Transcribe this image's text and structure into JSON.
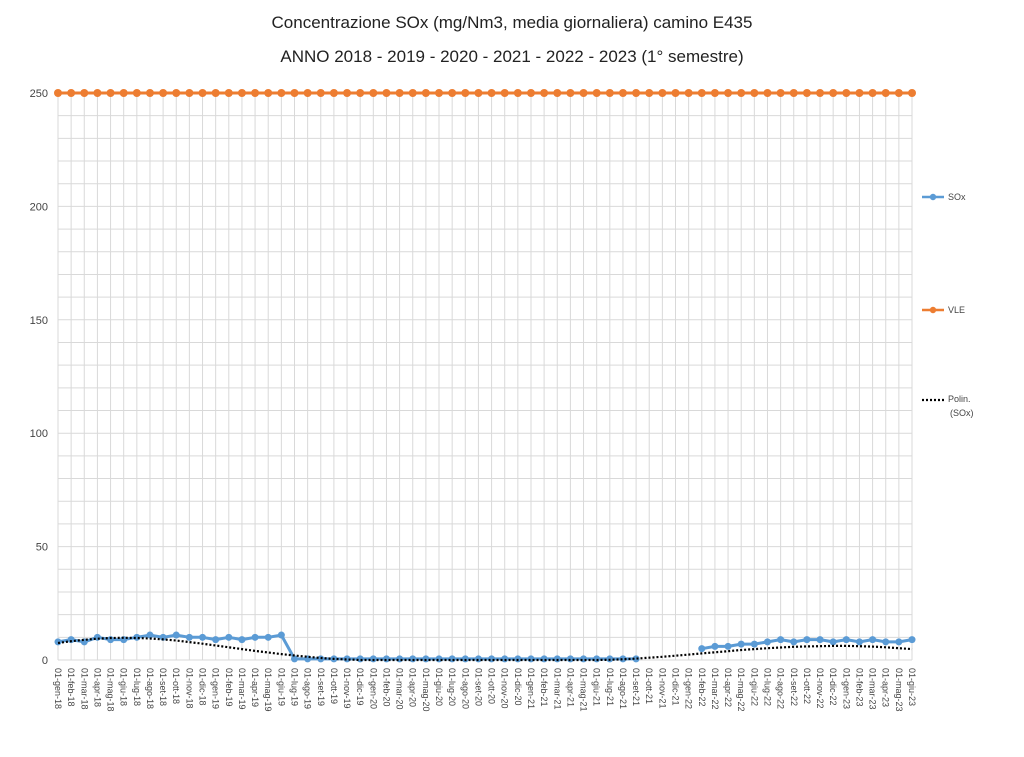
{
  "chart_data": {
    "type": "line",
    "title": "Concentrazione SOx (mg/Nm3, media giornaliera) camino E435",
    "subtitle": "ANNO 2018 - 2019 - 2020 - 2021 - 2022 - 2023 (1° semestre)",
    "ylim": [
      0,
      250
    ],
    "y_ticks": [
      0,
      50,
      100,
      150,
      200,
      250
    ],
    "grid": true,
    "legend_position": "right",
    "categories": [
      "01-gen-18",
      "01-feb-18",
      "01-mar-18",
      "01-apr-18",
      "01-mag-18",
      "01-giu-18",
      "01-lug-18",
      "01-ago-18",
      "01-set-18",
      "01-ott-18",
      "01-nov-18",
      "01-dic-18",
      "01-gen-19",
      "01-feb-19",
      "01-mar-19",
      "01-apr-19",
      "01-mag-19",
      "01-giu-19",
      "01-lug-19",
      "01-ago-19",
      "01-set-19",
      "01-ott-19",
      "01-nov-19",
      "01-dic-19",
      "01-gen-20",
      "01-feb-20",
      "01-mar-20",
      "01-apr-20",
      "01-mag-20",
      "01-giu-20",
      "01-lug-20",
      "01-ago-20",
      "01-set-20",
      "01-ott-20",
      "01-nov-20",
      "01-dic-20",
      "01-gen-21",
      "01-feb-21",
      "01-mar-21",
      "01-apr-21",
      "01-mag-21",
      "01-giu-21",
      "01-lug-21",
      "01-ago-21",
      "01-set-21",
      "01-ott-21",
      "01-nov-21",
      "01-dic-21",
      "01-gen-22",
      "01-feb-22",
      "01-mar-22",
      "01-apr-22",
      "01-mag-22",
      "01-giu-22",
      "01-lug-22",
      "01-ago-22",
      "01-set-22",
      "01-ott-22",
      "01-nov-22",
      "01-dic-22",
      "01-gen-23",
      "01-feb-23",
      "01-mar-23",
      "01-apr-23",
      "01-mag-23",
      "01-giu-23"
    ],
    "series": [
      {
        "name": "SOx",
        "color": "#5b9bd5",
        "values": [
          8,
          9,
          8,
          10,
          9,
          9,
          10,
          11,
          10,
          11,
          10,
          10,
          9,
          10,
          9,
          10,
          10,
          11,
          0.5,
          0.5,
          0.5,
          0.5,
          0.5,
          0.5,
          0.5,
          0.5,
          0.5,
          0.5,
          0.5,
          0.5,
          0.5,
          0.5,
          0.5,
          0.5,
          0.5,
          0.5,
          0.5,
          0.5,
          0.5,
          0.5,
          0.5,
          0.5,
          0.5,
          0.5,
          0.5,
          null,
          null,
          null,
          null,
          5,
          6,
          6,
          7,
          7,
          8,
          9,
          8,
          9,
          9,
          8,
          9,
          8,
          9,
          8,
          8,
          9
        ]
      },
      {
        "name": "VLE",
        "color": "#ed7d31",
        "values": [
          250,
          250,
          250,
          250,
          250,
          250,
          250,
          250,
          250,
          250,
          250,
          250,
          250,
          250,
          250,
          250,
          250,
          250,
          250,
          250,
          250,
          250,
          250,
          250,
          250,
          250,
          250,
          250,
          250,
          250,
          250,
          250,
          250,
          250,
          250,
          250,
          250,
          250,
          250,
          250,
          250,
          250,
          250,
          250,
          250,
          250,
          250,
          250,
          250,
          250,
          250,
          250,
          250,
          250,
          250,
          250,
          250,
          250,
          250,
          250,
          250,
          250,
          250,
          250,
          250,
          250
        ]
      },
      {
        "name": "Polin. (SOx)",
        "color": "#000000",
        "style": "dotted",
        "values": [
          7.5,
          8.3,
          8.9,
          9.4,
          9.7,
          9.8,
          9.7,
          9.5,
          9.1,
          8.6,
          7.9,
          7.2,
          6.4,
          5.6,
          4.8,
          4.0,
          3.3,
          2.6,
          2.0,
          1.4,
          0.9,
          0.5,
          0.2,
          0.0,
          0.0,
          0.0,
          0.0,
          0.0,
          0.0,
          0.0,
          0.0,
          0.0,
          0.0,
          0.0,
          0.0,
          0.0,
          0.0,
          0.0,
          0.0,
          0.0,
          0.0,
          0.0,
          0.1,
          0.3,
          0.6,
          1.0,
          1.4,
          1.9,
          2.4,
          2.9,
          3.4,
          3.9,
          4.4,
          4.8,
          5.2,
          5.5,
          5.8,
          6.0,
          6.1,
          6.2,
          6.2,
          6.1,
          5.9,
          5.6,
          5.2,
          4.8
        ]
      }
    ]
  }
}
